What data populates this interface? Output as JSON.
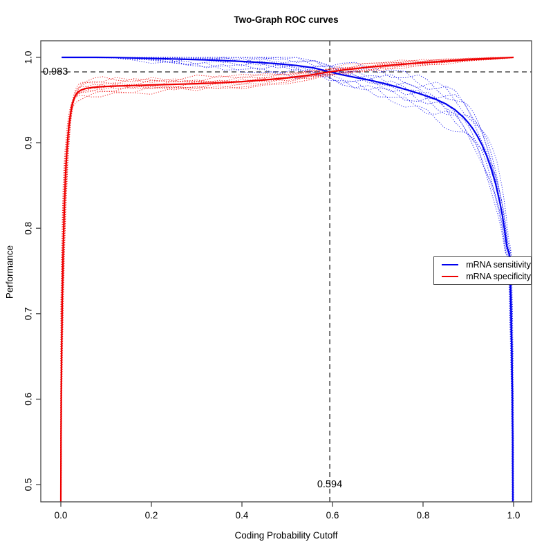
{
  "chart_data": {
    "type": "line",
    "title": "Two-Graph ROC curves",
    "xlabel": "Coding Probability Cutoff",
    "ylabel": "Performance",
    "xlim": [
      -0.0443,
      1.0397
    ],
    "ylim": [
      0.4798,
      1.0194
    ],
    "x_ticks": [
      0.0,
      0.2,
      0.4,
      0.6,
      0.8,
      1.0
    ],
    "x_tick_labels": [
      "0.0",
      "0.2",
      "0.4",
      "0.6",
      "0.8",
      "1.0"
    ],
    "y_ticks": [
      0.5,
      0.6,
      0.7,
      0.8,
      0.9,
      1.0
    ],
    "y_tick_labels": [
      "0.5",
      "0.6",
      "0.7",
      "0.8",
      "0.9",
      "1.0"
    ],
    "grid": false,
    "axis_color": "#444444",
    "reference_lines": {
      "style": "dashed",
      "color": "#262626",
      "horizontal": {
        "value": 0.983,
        "label": "0.983"
      },
      "vertical": {
        "value": 0.594,
        "label": "0.594"
      }
    },
    "legend_position": "right-middle",
    "series": [
      {
        "name": "mRNA sensitivity",
        "color": "#0000EE",
        "points": [
          [
            0.002,
            1.0
          ],
          [
            0.04,
            1.0
          ],
          [
            0.08,
            1.0
          ],
          [
            0.12,
            0.9998
          ],
          [
            0.16,
            0.9993
          ],
          [
            0.2,
            0.9988
          ],
          [
            0.24,
            0.9982
          ],
          [
            0.28,
            0.9976
          ],
          [
            0.32,
            0.997
          ],
          [
            0.36,
            0.9962
          ],
          [
            0.4,
            0.9952
          ],
          [
            0.44,
            0.994
          ],
          [
            0.48,
            0.9925
          ],
          [
            0.52,
            0.9905
          ],
          [
            0.56,
            0.9875
          ],
          [
            0.594,
            0.983
          ],
          [
            0.62,
            0.9797
          ],
          [
            0.65,
            0.9765
          ],
          [
            0.68,
            0.9735
          ],
          [
            0.7,
            0.9712
          ],
          [
            0.73,
            0.9672
          ],
          [
            0.76,
            0.9627
          ],
          [
            0.79,
            0.9578
          ],
          [
            0.81,
            0.9543
          ],
          [
            0.83,
            0.9505
          ],
          [
            0.85,
            0.9455
          ],
          [
            0.87,
            0.939
          ],
          [
            0.89,
            0.9295
          ],
          [
            0.9,
            0.9235
          ],
          [
            0.91,
            0.9165
          ],
          [
            0.92,
            0.908
          ],
          [
            0.93,
            0.898
          ],
          [
            0.94,
            0.8855
          ],
          [
            0.95,
            0.8705
          ],
          [
            0.96,
            0.8525
          ],
          [
            0.97,
            0.8295
          ],
          [
            0.975,
            0.8155
          ],
          [
            0.98,
            0.7985
          ],
          [
            0.985,
            0.779
          ],
          [
            0.99,
            0.7705
          ],
          [
            0.9916,
            0.7645
          ],
          [
            0.993,
            0.735
          ],
          [
            0.9945,
            0.7
          ],
          [
            0.996,
            0.655
          ],
          [
            0.9972,
            0.607
          ],
          [
            0.998,
            0.555
          ],
          [
            0.9985,
            0.4798
          ]
        ]
      },
      {
        "name": "mRNA specificity",
        "color": "#EE0000",
        "points": [
          [
            0.0,
            0.4798
          ],
          [
            0.0005,
            0.56
          ],
          [
            0.001,
            0.615
          ],
          [
            0.002,
            0.672
          ],
          [
            0.003,
            0.715
          ],
          [
            0.0045,
            0.757
          ],
          [
            0.006,
            0.792
          ],
          [
            0.008,
            0.828
          ],
          [
            0.01,
            0.857
          ],
          [
            0.012,
            0.878
          ],
          [
            0.014,
            0.8955
          ],
          [
            0.016,
            0.909
          ],
          [
            0.018,
            0.9205
          ],
          [
            0.021,
            0.9325
          ],
          [
            0.024,
            0.942
          ],
          [
            0.027,
            0.9485
          ],
          [
            0.03,
            0.953
          ],
          [
            0.034,
            0.957
          ],
          [
            0.038,
            0.9595
          ],
          [
            0.045,
            0.9618
          ],
          [
            0.055,
            0.9635
          ],
          [
            0.07,
            0.9648
          ],
          [
            0.09,
            0.9657
          ],
          [
            0.12,
            0.9664
          ],
          [
            0.16,
            0.967
          ],
          [
            0.2,
            0.9677
          ],
          [
            0.25,
            0.9684
          ],
          [
            0.3,
            0.9692
          ],
          [
            0.35,
            0.9702
          ],
          [
            0.4,
            0.9716
          ],
          [
            0.45,
            0.9736
          ],
          [
            0.5,
            0.976
          ],
          [
            0.55,
            0.9793
          ],
          [
            0.594,
            0.983
          ],
          [
            0.63,
            0.9856
          ],
          [
            0.67,
            0.988
          ],
          [
            0.71,
            0.99
          ],
          [
            0.75,
            0.9918
          ],
          [
            0.8,
            0.9938
          ],
          [
            0.85,
            0.9955
          ],
          [
            0.9,
            0.9972
          ],
          [
            0.95,
            0.9987
          ],
          [
            0.98,
            0.9995
          ],
          [
            1.0,
            1.0
          ]
        ]
      }
    ],
    "replicates": {
      "style": "dotted",
      "count": 10,
      "offsets": [
        -1,
        -0.78,
        -0.56,
        -0.33,
        -0.11,
        0.11,
        0.33,
        0.56,
        0.78,
        1
      ],
      "sensitivity_envelope": [
        [
          0,
          0
        ],
        [
          0.12,
          0.0005
        ],
        [
          0.18,
          0.003
        ],
        [
          0.25,
          0.0065
        ],
        [
          0.35,
          0.009
        ],
        [
          0.45,
          0.01
        ],
        [
          0.55,
          0.01
        ],
        [
          0.62,
          0.011
        ],
        [
          0.7,
          0.013
        ],
        [
          0.78,
          0.016
        ],
        [
          0.85,
          0.019
        ],
        [
          0.9,
          0.021
        ],
        [
          0.94,
          0.022
        ],
        [
          0.96,
          0.018
        ],
        [
          0.975,
          0.012
        ],
        [
          0.985,
          0.007
        ],
        [
          0.991,
          0.004
        ],
        [
          0.995,
          0.002
        ],
        [
          0.9985,
          0.0008
        ]
      ],
      "sensitivity_x_envelope": [
        [
          0,
          0
        ],
        [
          0.9,
          0.001
        ],
        [
          0.95,
          0.003
        ],
        [
          0.98,
          0.004
        ],
        [
          0.995,
          0.003
        ],
        [
          0.9985,
          0.0015
        ]
      ],
      "specificity_envelope": [
        [
          0,
          0.0005
        ],
        [
          0.004,
          0.006
        ],
        [
          0.01,
          0.009
        ],
        [
          0.02,
          0.01
        ],
        [
          0.035,
          0.009
        ],
        [
          0.06,
          0.0085
        ],
        [
          0.1,
          0.008
        ],
        [
          0.2,
          0.0075
        ],
        [
          0.3,
          0.007
        ],
        [
          0.4,
          0.0065
        ],
        [
          0.5,
          0.0055
        ],
        [
          0.594,
          0.005
        ],
        [
          0.7,
          0.004
        ],
        [
          0.8,
          0.003
        ],
        [
          0.9,
          0.002
        ],
        [
          0.96,
          0.0012
        ],
        [
          1.0,
          0.0004
        ]
      ],
      "specificity_x_envelope": [
        [
          0,
          0.0008
        ],
        [
          0.003,
          0.003
        ],
        [
          0.01,
          0.005
        ],
        [
          0.03,
          0.005
        ],
        [
          0.06,
          0.003
        ],
        [
          0.12,
          0.0015
        ],
        [
          0.25,
          0.0005
        ],
        [
          0.5,
          0
        ]
      ]
    }
  }
}
